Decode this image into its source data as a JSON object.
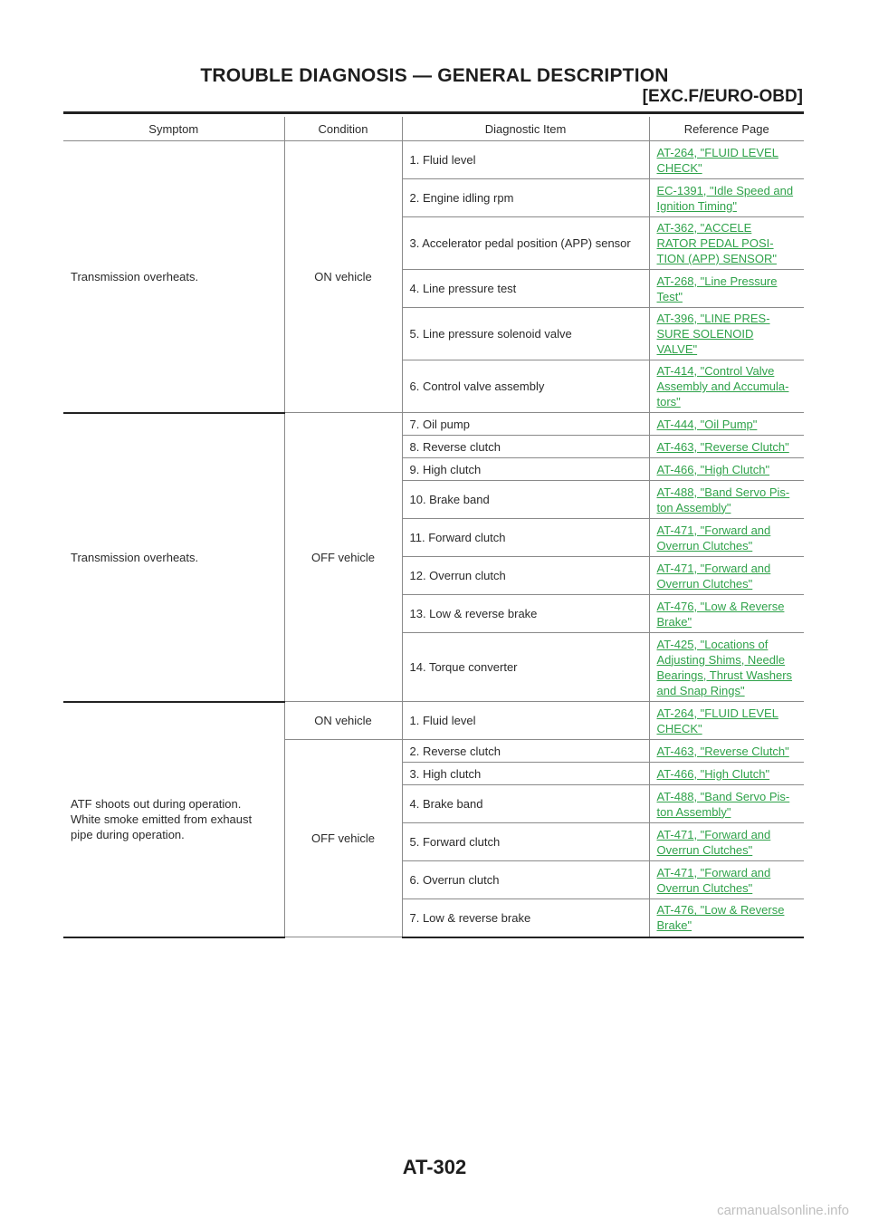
{
  "page": {
    "title": "TROUBLE DIAGNOSIS — GENERAL DESCRIPTION",
    "subtitle": "[EXC.F/EURO-OBD]",
    "page_number": "AT-302",
    "watermark": "carmanualsonline.info"
  },
  "table": {
    "headers": [
      "Symptom",
      "Condition",
      "Diagnostic Item",
      "Reference Page"
    ],
    "groups": [
      {
        "symptom": "Transmission overheats.",
        "condition": "ON vehicle",
        "rows": [
          {
            "item": "1. Fluid level",
            "ref": [
              "AT-264, \"FLUID LEVEL ",
              "CHECK\""
            ]
          },
          {
            "item": "2. Engine idling rpm",
            "ref": [
              "EC-1391, \"Idle Speed and ",
              "Ignition Timing\""
            ]
          },
          {
            "item": "3. Accelerator pedal position (APP) sensor",
            "ref": [
              "AT-362, \"ACCELE ",
              "RATOR PEDAL POSI-",
              "TION (APP) SENSOR\""
            ]
          },
          {
            "item": "4. Line pressure test",
            "ref": [
              "AT-268, \"Line Pressure ",
              "Test\""
            ]
          },
          {
            "item": "5. Line pressure solenoid valve",
            "ref": [
              "AT-396, \"LINE PRES-",
              "SURE SOLENOID ",
              "VALVE\""
            ]
          },
          {
            "item": "6. Control valve assembly",
            "ref": [
              "AT-414, \"Control Valve ",
              "Assembly and Accumula-",
              "tors\""
            ]
          }
        ]
      },
      {
        "symptom": "Transmission overheats.",
        "condition": "OFF vehicle",
        "rows": [
          {
            "item": "7. Oil pump",
            "ref": [
              "AT-444, \"Oil Pump\""
            ]
          },
          {
            "item": "8. Reverse clutch",
            "ref": [
              "AT-463, \"Reverse Clutch\""
            ]
          },
          {
            "item": "9. High clutch",
            "ref": [
              "AT-466, \"High Clutch\""
            ]
          },
          {
            "item": "10. Brake band",
            "ref": [
              "AT-488, \"Band Servo Pis-",
              "ton Assembly\""
            ]
          },
          {
            "item": "11. Forward clutch",
            "ref": [
              "AT-471, \"Forward and ",
              "Overrun Clutches\""
            ]
          },
          {
            "item": "12. Overrun clutch",
            "ref": [
              "AT-471, \"Forward and ",
              "Overrun Clutches\""
            ]
          },
          {
            "item": "13. Low & reverse brake",
            "ref": [
              "AT-476, \"Low & Reverse ",
              "Brake\""
            ]
          },
          {
            "item": "14. Torque converter",
            "ref": [
              "AT-425, \"Locations of ",
              "Adjusting Shims, Needle ",
              "Bearings, Thrust Washers ",
              "and Snap Rings\""
            ]
          }
        ]
      },
      {
        "symptom": "ATF shoots out during operation.\nWhite smoke emitted from exhaust\npipe during operation.",
        "condition": "ON vehicle",
        "rows": [
          {
            "item": "1. Fluid level",
            "ref": [
              "AT-264, \"FLUID LEVEL ",
              "CHECK\""
            ]
          }
        ]
      },
      {
        "symptom": "",
        "condition": "OFF vehicle",
        "rows": [
          {
            "item": "2. Reverse clutch",
            "ref": [
              "AT-463, \"Reverse Clutch\""
            ]
          },
          {
            "item": "3. High clutch",
            "ref": [
              "AT-466, \"High Clutch\""
            ]
          },
          {
            "item": "4. Brake band",
            "ref": [
              "AT-488, \"Band Servo Pis-",
              "ton Assembly\""
            ]
          },
          {
            "item": "5. Forward clutch",
            "ref": [
              "AT-471, \"Forward and ",
              "Overrun Clutches\""
            ]
          },
          {
            "item": "6. Overrun clutch",
            "ref": [
              "AT-471, \"Forward and ",
              "Overrun Clutches\""
            ]
          },
          {
            "item": "7. Low & reverse brake",
            "ref": [
              "AT-476, \"Low & Reverse ",
              "Brake\""
            ]
          }
        ]
      }
    ]
  }
}
